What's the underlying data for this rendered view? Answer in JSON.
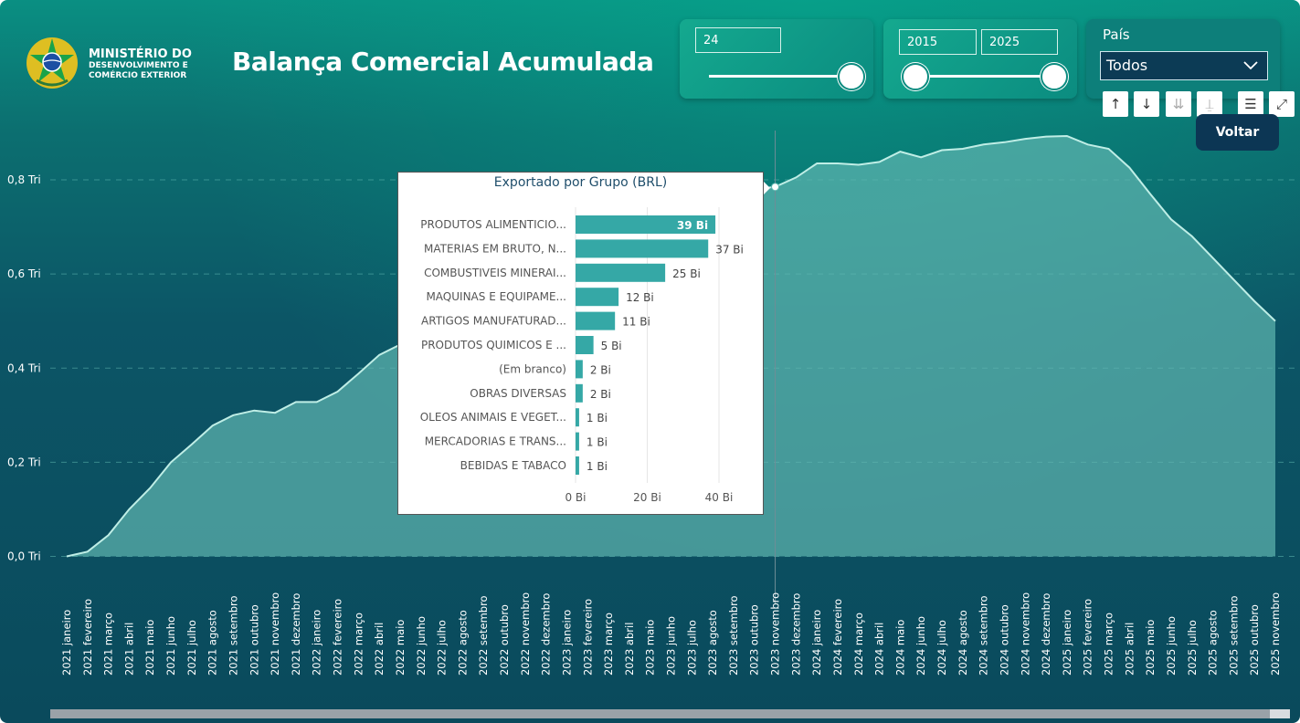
{
  "header": {
    "org_line1": "MINISTÉRIO DO",
    "org_line2": "DESENVOLVIMENTO E",
    "org_line3": "COMÉRCIO EXTERIOR",
    "title": "Balança Comercial Acumulada",
    "logo_icon": "coat-of-arms-icon"
  },
  "filters": {
    "months_value": "24",
    "year_from": "2015",
    "year_to": "2025",
    "country_label": "País",
    "country_value": "Todos"
  },
  "toolbar": {
    "sort_asc_icon": "↑",
    "sort_desc_icon": "↓",
    "drill_icon": "⇊",
    "hierarchy_icon": "⍊",
    "filter_icon": "☰",
    "focus_icon": "⤢",
    "back_label": "Voltar"
  },
  "colors": {
    "area_fill": "#5fb7b0",
    "line": "#bfeee6",
    "bar": "#35a8a6",
    "accent_dark": "#0c3654"
  },
  "chart_data": [
    {
      "type": "area",
      "title": "",
      "xlabel": "",
      "ylabel": "",
      "y_tick_labels": [
        "0,0 Tri",
        "0,2 Tri",
        "0,4 Tri",
        "0,6 Tri",
        "0,8 Tri"
      ],
      "ylim": [
        -0.1,
        0.96
      ],
      "grid": true,
      "x": [
        "2021 janeiro",
        "2021 fevereiro",
        "2021 março",
        "2021 abril",
        "2021 maio",
        "2021 junho",
        "2021 julho",
        "2021 agosto",
        "2021 setembro",
        "2021 outubro",
        "2021 novembro",
        "2021 dezembro",
        "2022 janeiro",
        "2022 fevereiro",
        "2022 março",
        "2022 abril",
        "2022 maio",
        "2022 junho",
        "2022 julho",
        "2022 agosto",
        "2022 setembro",
        "2022 outubro",
        "2022 novembro",
        "2022 dezembro",
        "2023 janeiro",
        "2023 fevereiro",
        "2023 março",
        "2023 abril",
        "2023 maio",
        "2023 junho",
        "2023 julho",
        "2023 agosto",
        "2023 setembro",
        "2023 outubro",
        "2023 novembro",
        "2023 dezembro",
        "2024 janeiro",
        "2024 fevereiro",
        "2024 março",
        "2024 abril",
        "2024 maio",
        "2024 junho",
        "2024 julho",
        "2024 agosto",
        "2024 setembro",
        "2024 outubro",
        "2024 novembro",
        "2024 dezembro",
        "2025 janeiro",
        "2025 fevereiro",
        "2025 março",
        "2025 abril",
        "2025 maio",
        "2025 junho",
        "2025 julho",
        "2025 agosto",
        "2025 setembro",
        "2025 outubro",
        "2025 novembro"
      ],
      "values": [
        0.0,
        0.01,
        0.045,
        0.1,
        0.145,
        0.2,
        0.238,
        0.278,
        0.3,
        0.31,
        0.305,
        0.328,
        0.328,
        0.35,
        0.388,
        0.428,
        0.45,
        0.5,
        0.53,
        0.56,
        0.59,
        0.61,
        0.64,
        0.66,
        0.68,
        0.7,
        0.71,
        0.72,
        0.73,
        0.74,
        0.755,
        0.765,
        0.775,
        0.78,
        0.785,
        0.805,
        0.835,
        0.835,
        0.832,
        0.838,
        0.86,
        0.848,
        0.863,
        0.866,
        0.875,
        0.88,
        0.887,
        0.892,
        0.893,
        0.875,
        0.866,
        0.826,
        0.77,
        0.716,
        0.68,
        0.634,
        0.588,
        0.542,
        0.5
      ],
      "highlight_x": "2023 novembro"
    },
    {
      "type": "bar",
      "orientation": "horizontal",
      "title": "Exportado por Grupo (BRL)",
      "categories": [
        "PRODUTOS ALIMENTICIO...",
        "MATERIAS EM BRUTO, N...",
        "COMBUSTIVEIS MINERAI...",
        "MAQUINAS E EQUIPAME...",
        "ARTIGOS MANUFATURAD...",
        "PRODUTOS QUIMICOS E ...",
        "(Em branco)",
        "OBRAS DIVERSAS",
        "OLEOS ANIMAIS E VEGET...",
        "MERCADORIAS E TRANS...",
        "BEBIDAS E TABACO"
      ],
      "values": [
        39,
        37,
        25,
        12,
        11,
        5,
        2,
        2,
        1,
        1,
        1
      ],
      "data_labels": [
        "39 Bi",
        "37 Bi",
        "25 Bi",
        "12 Bi",
        "11 Bi",
        "5 Bi",
        "2 Bi",
        "2 Bi",
        "1 Bi",
        "1 Bi",
        "1 Bi"
      ],
      "x_tick_labels": [
        "0 Bi",
        "20 Bi",
        "40 Bi"
      ],
      "xlim": [
        0,
        40
      ],
      "grid": true
    }
  ]
}
